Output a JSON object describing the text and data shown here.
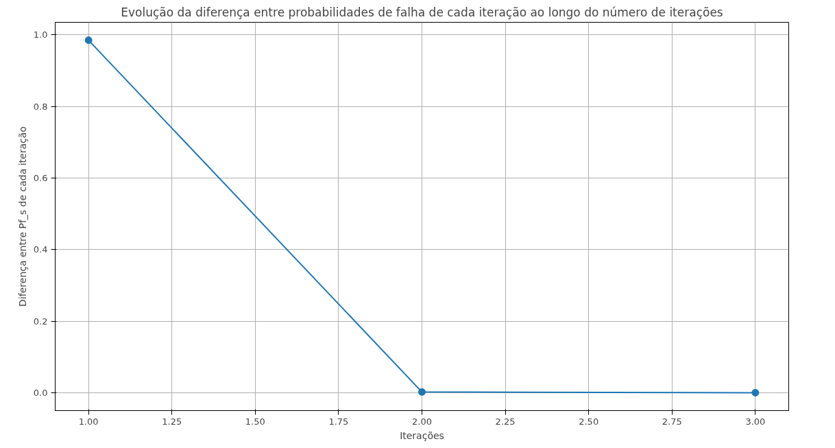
{
  "chart_data": {
    "type": "line",
    "title": "Evolução da diferença entre probabilidades de falha de cada iteração ao longo do número de iterações",
    "xlabel": "Iterações",
    "ylabel": "Diferença entre Pf_s de cada iteração",
    "x": [
      1,
      2,
      3
    ],
    "series": [
      {
        "color": "#1f77b4",
        "values": [
          0.985,
          0.002,
          0.0
        ]
      }
    ],
    "xlim": [
      0.9,
      3.1
    ],
    "ylim": [
      -0.05,
      1.035
    ],
    "xticks": [
      {
        "value": 1,
        "label": "1.00"
      },
      {
        "value": 1.25,
        "label": "1.25"
      },
      {
        "value": 1.5,
        "label": "1.50"
      },
      {
        "value": 1.75,
        "label": "1.75"
      },
      {
        "value": 2,
        "label": "2.00"
      },
      {
        "value": 2.25,
        "label": "2.25"
      },
      {
        "value": 2.5,
        "label": "2.50"
      },
      {
        "value": 2.75,
        "label": "2.75"
      },
      {
        "value": 3,
        "label": "3.00"
      }
    ],
    "yticks": [
      {
        "value": 0,
        "label": "0.0"
      },
      {
        "value": 0.2,
        "label": "0.2"
      },
      {
        "value": 0.4,
        "label": "0.4"
      },
      {
        "value": 0.6,
        "label": "0.6"
      },
      {
        "value": 0.8,
        "label": "0.8"
      },
      {
        "value": 1.0,
        "label": "1.0"
      }
    ],
    "grid": true,
    "marker": "circle",
    "line_style": "solid"
  }
}
